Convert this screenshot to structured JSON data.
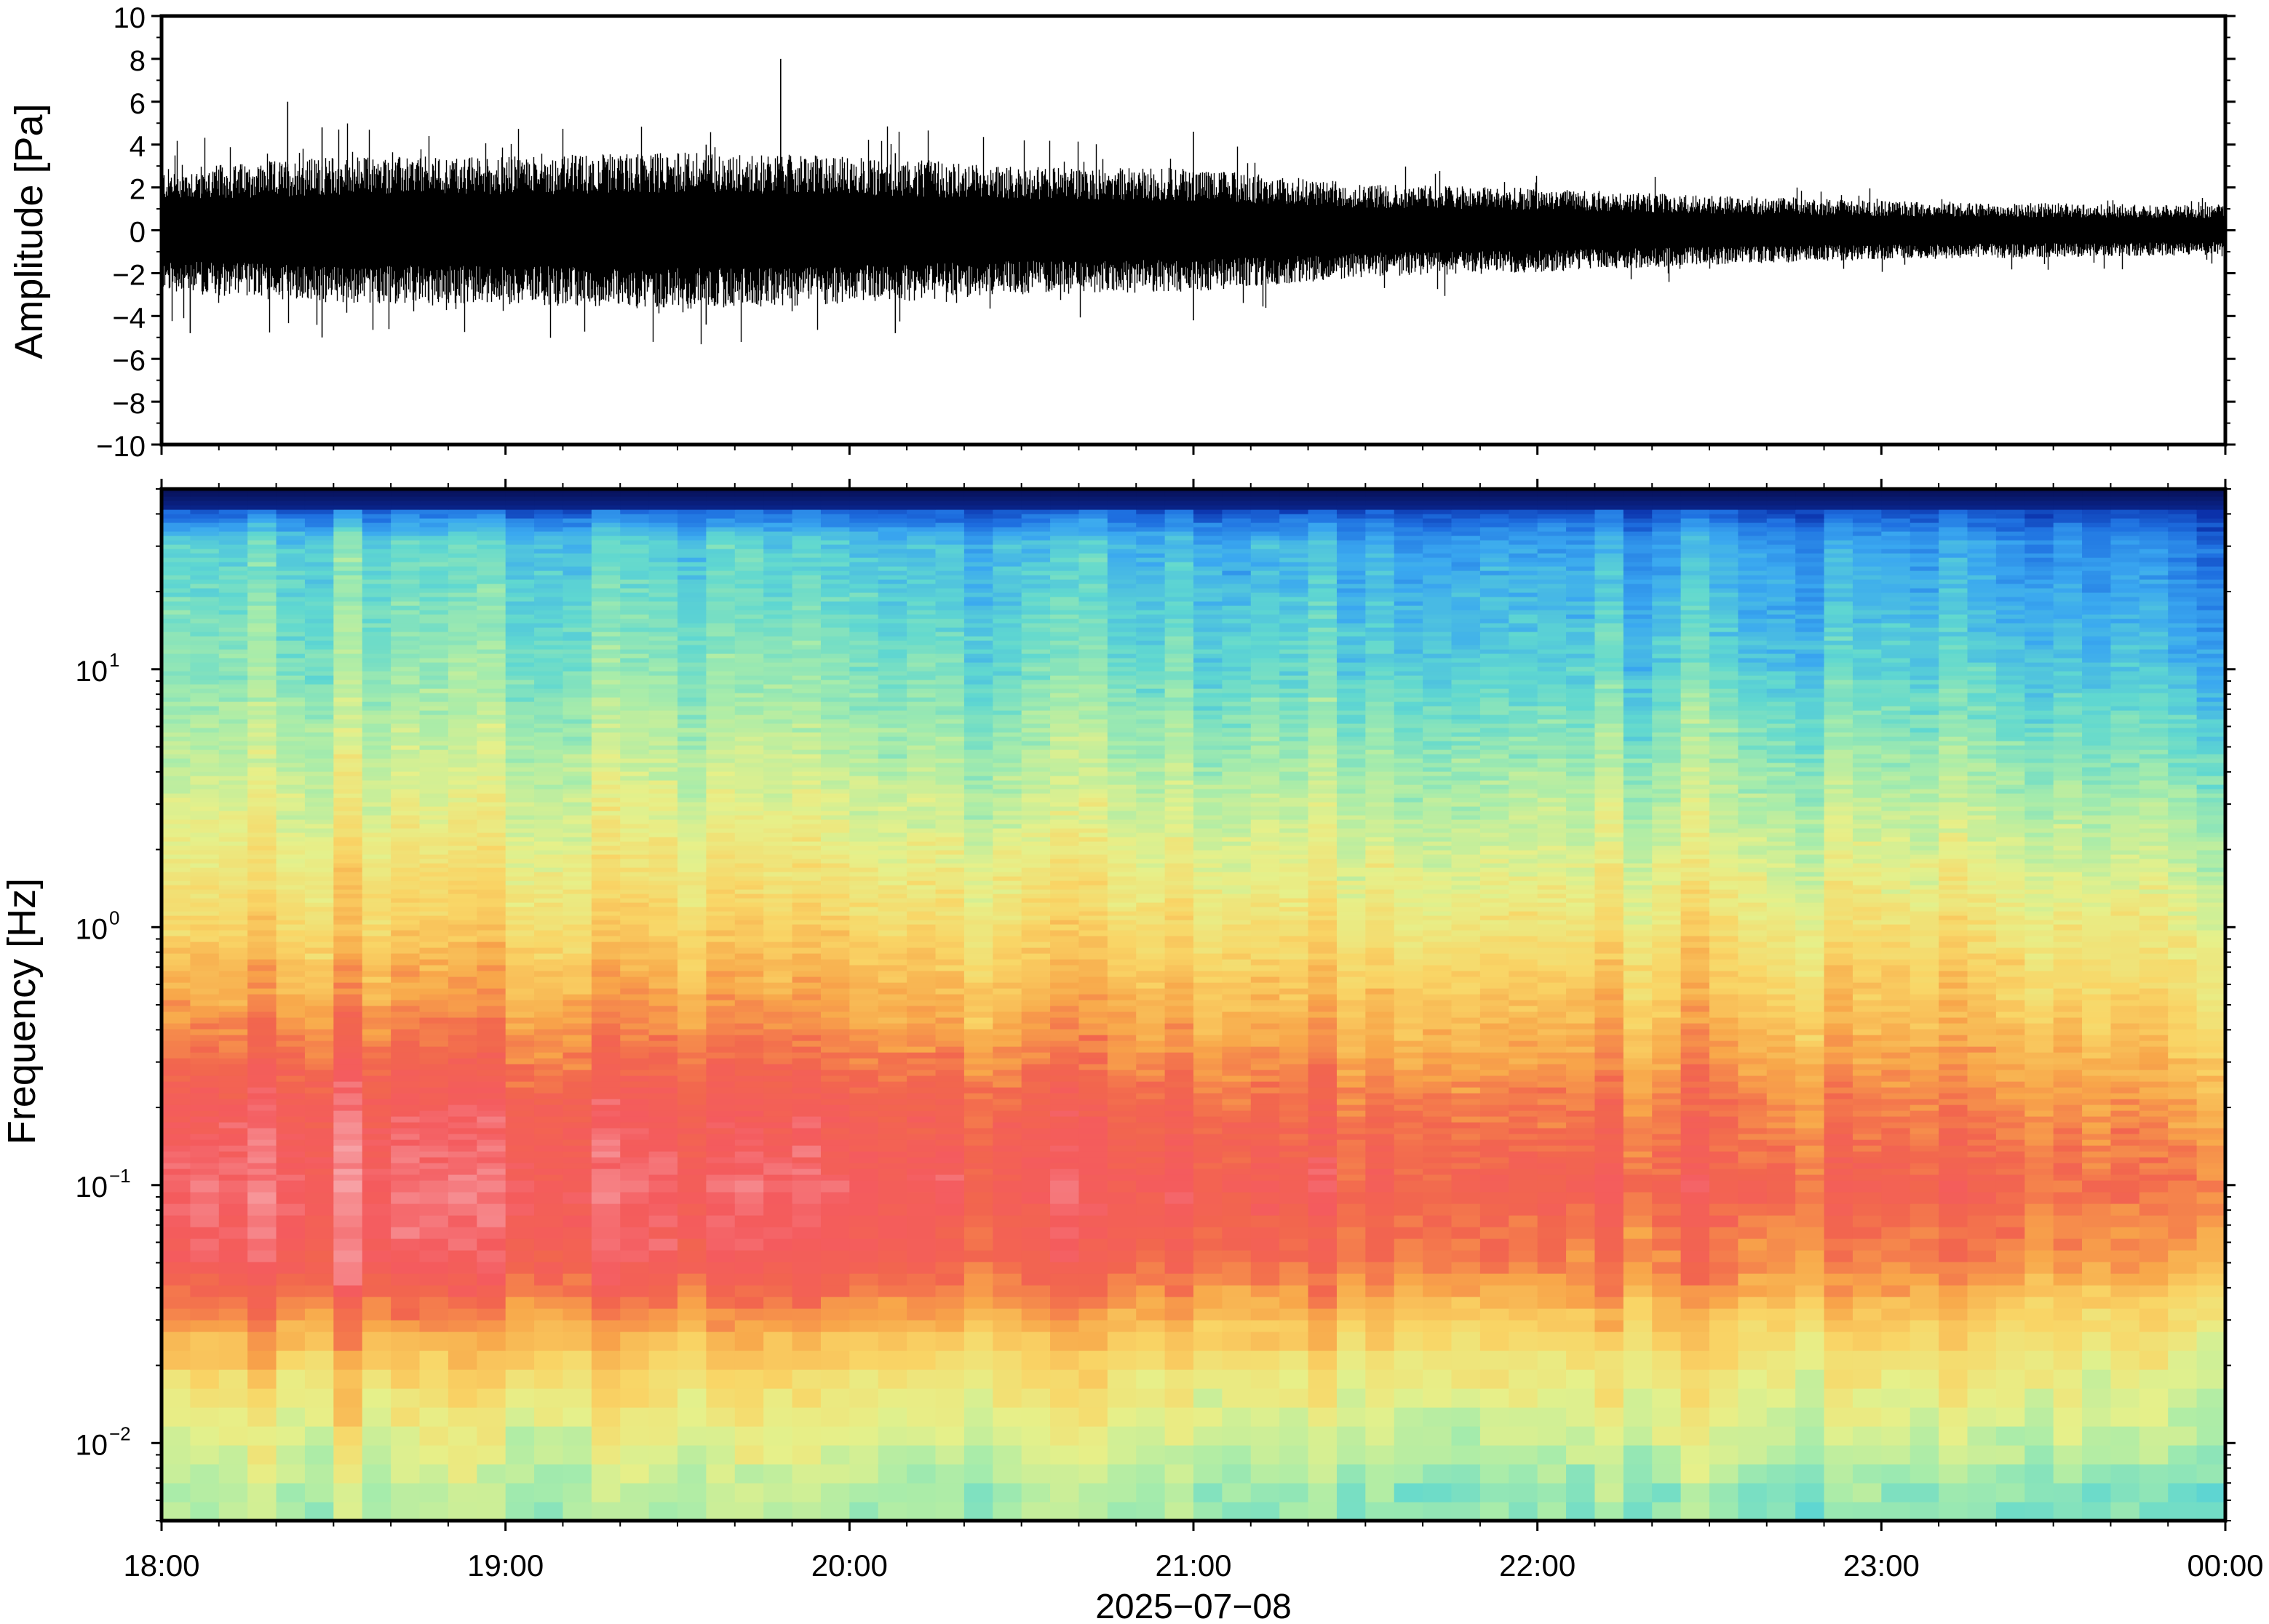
{
  "chart_data": [
    {
      "type": "line",
      "panel": "waveform",
      "ylabel": "Amplitude [Pa]",
      "ylim": [
        -10,
        10
      ],
      "yticks": [
        10,
        8,
        6,
        4,
        2,
        0,
        -2,
        -4,
        -6,
        -8,
        -10
      ],
      "ytick_labels": [
        "10",
        "8",
        "6",
        "4",
        "2",
        "0",
        "−2",
        "−4",
        "−6",
        "−8",
        "−10"
      ],
      "xlim": [
        "18:00",
        "00:00"
      ],
      "envelope_hours": [
        18.0,
        18.5,
        19.0,
        19.5,
        20.0,
        20.5,
        21.0,
        21.5,
        22.0,
        22.5,
        23.0,
        23.5,
        24.0
      ],
      "envelope_amplitude_pa": [
        2.5,
        3.0,
        3.0,
        3.2,
        3.0,
        2.6,
        2.5,
        1.9,
        1.7,
        1.4,
        1.2,
        1.1,
        1.0
      ],
      "spikes": [
        {
          "time": "18:22",
          "max": 6.0,
          "min": -2.5
        },
        {
          "time": "19:48",
          "max": 8.0,
          "min": -1.5
        },
        {
          "time": "21:00",
          "max": 4.6,
          "min": -4.2
        },
        {
          "time": "18:05",
          "max": 1.5,
          "min": -4.8
        },
        {
          "time": "18:28",
          "max": 4.8,
          "min": -5.0
        },
        {
          "time": "19:35",
          "max": 4.0,
          "min": -4.4
        },
        {
          "time": "20:08",
          "max": 3.6,
          "min": -4.8
        }
      ]
    },
    {
      "type": "heatmap",
      "panel": "spectrogram",
      "ylabel": "Frequency [Hz]",
      "xlabel": "2025−07−08",
      "yscale": "log",
      "ylim": [
        0.005,
        50
      ],
      "yticks": [
        {
          "base": "10",
          "exp": "1"
        },
        {
          "base": "10",
          "exp": "0"
        },
        {
          "base": "10",
          "exp": "−1"
        },
        {
          "base": "10",
          "exp": "−2"
        }
      ],
      "ytick_values": [
        10,
        1,
        0.1,
        0.01
      ],
      "xticks": [
        "18:00",
        "19:00",
        "20:00",
        "21:00",
        "22:00",
        "23:00",
        "00:00"
      ],
      "colormap": [
        "#07073c",
        "#0a2fa8",
        "#1e6fe0",
        "#3aa8f0",
        "#60d8d0",
        "#a8ecaa",
        "#e6f08a",
        "#f9d566",
        "#f8a74a",
        "#f2664e",
        "#f45b5e",
        "#f7a0a4"
      ],
      "description_profile": {
        "rows_log10_hz": [
          1.7,
          1.5,
          1.0,
          0.5,
          0.0,
          -0.4,
          -0.7,
          -1.0,
          -1.3,
          -1.5,
          -1.7,
          -2.0,
          -2.2
        ],
        "level_start": [
          0.05,
          0.38,
          0.45,
          0.55,
          0.66,
          0.8,
          0.92,
          0.96,
          0.93,
          0.8,
          0.66,
          0.55,
          0.5
        ],
        "level_end": [
          0.05,
          0.22,
          0.32,
          0.45,
          0.57,
          0.66,
          0.74,
          0.8,
          0.73,
          0.62,
          0.56,
          0.48,
          0.4
        ]
      }
    }
  ]
}
